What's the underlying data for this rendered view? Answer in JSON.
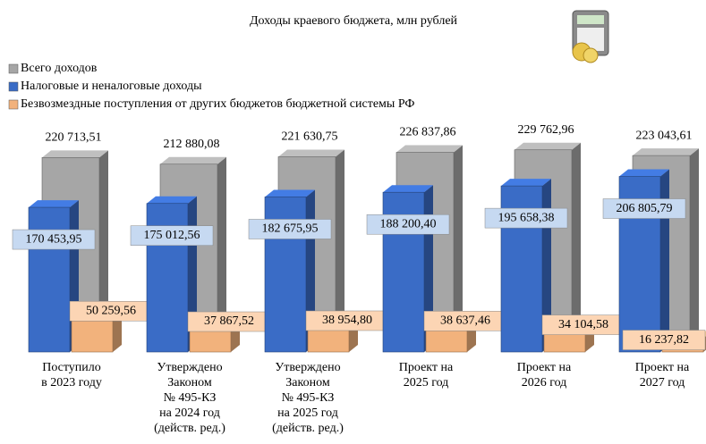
{
  "chart_data": {
    "type": "bar3d",
    "title": "Доходы краевого бюджета, млн рублей",
    "categories": [
      [
        "Поступило",
        "в 2023 году"
      ],
      [
        "Утверждено",
        "Законом",
        "№ 495-КЗ",
        "на 2024 год",
        "(действ. ред.)"
      ],
      [
        "Утверждено",
        "Законом",
        "№ 495-КЗ",
        "на 2025 год",
        "(действ. ред.)"
      ],
      [
        "Проект на",
        "2025 год"
      ],
      [
        "Проект на",
        "2026 год"
      ],
      [
        "Проект на",
        "2027 год"
      ]
    ],
    "series": [
      {
        "name": "Всего доходов",
        "color": "#a6a6a6",
        "values": [
          220713.51,
          212880.08,
          221630.75,
          226837.86,
          229762.96,
          223043.61
        ],
        "value_labels": [
          "220 713,51",
          "212 880,08",
          "221 630,75",
          "226 837,86",
          "229 762,96",
          "223 043,61"
        ]
      },
      {
        "name": "Налоговые и неналоговые доходы",
        "color": "#3a6cc6",
        "values": [
          170453.95,
          175012.56,
          182675.95,
          188200.4,
          195658.38,
          206805.79
        ],
        "value_labels": [
          "170 453,95",
          "175 012,56",
          "182 675,95",
          "188 200,40",
          "195 658,38",
          "206 805,79"
        ]
      },
      {
        "name": "Безвозмездные поступления от других бюджетов бюджетной системы РФ",
        "color": "#f2b27c",
        "values": [
          50259.56,
          37867.52,
          38954.8,
          38637.46,
          34104.58,
          16237.82
        ],
        "value_labels": [
          "50 259,56",
          "37 867,52",
          "38 954,80",
          "38 637,46",
          "34 104,58",
          "16 237,82"
        ]
      }
    ]
  }
}
